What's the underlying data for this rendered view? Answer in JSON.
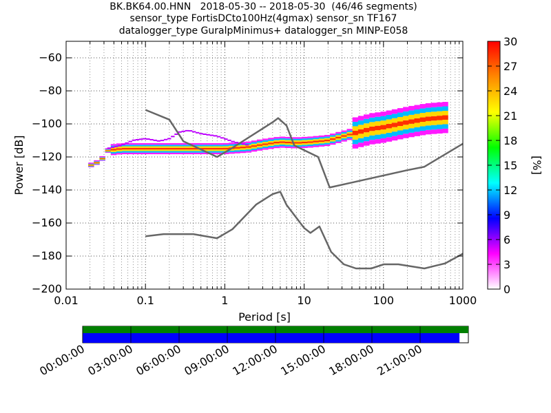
{
  "titles": [
    "BK.BK64.00.HNN   2018-05-30 -- 2018-05-30  (46/46 segments)",
    "sensor_type FortisDCto100Hz(4gmax) sensor_sn TF167",
    "datalogger_type GuralpMinimus+ datalogger_sn MINP-E058"
  ],
  "chart_data": {
    "type": "heatmap",
    "xlabel": "Period [s]",
    "ylabel": "Power [dB]",
    "xscale": "log",
    "xlim": [
      0.01,
      1000
    ],
    "ylim": [
      -200,
      -50
    ],
    "xticks": [
      0.01,
      0.1,
      1,
      10,
      100,
      1000
    ],
    "xtick_labels": [
      "0.01",
      "0.1",
      "1",
      "10",
      "100",
      "1000"
    ],
    "yticks": [
      -60,
      -80,
      -100,
      -120,
      -140,
      -160,
      -180,
      -200
    ],
    "ytick_labels": [
      "−60",
      "−80",
      "−100",
      "−120",
      "−140",
      "−160",
      "−180",
      "−200"
    ],
    "grid": true,
    "colorbar": {
      "label": "[%]",
      "range": [
        0,
        30
      ],
      "ticks": [
        0,
        3,
        6,
        9,
        12,
        15,
        18,
        21,
        24,
        27,
        30
      ],
      "colors": [
        "#ffffff",
        "#ff00ff",
        "#0000ff",
        "#00ffff",
        "#00ff00",
        "#ffff00",
        "#ff8800",
        "#ff0000"
      ]
    },
    "noise_models": [
      {
        "points": [
          [
            0.1,
            -91.5
          ],
          [
            0.2,
            -97.4
          ],
          [
            0.3,
            -110.5
          ],
          [
            0.8,
            -120
          ],
          [
            1.2,
            -115
          ],
          [
            4,
            -99
          ],
          [
            4.7,
            -96.5
          ],
          [
            6,
            -101
          ],
          [
            7.5,
            -113
          ],
          [
            15,
            -120
          ],
          [
            21,
            -138.5
          ],
          [
            200,
            -128
          ],
          [
            325,
            -126
          ],
          [
            1000,
            -112
          ]
        ]
      },
      {
        "points": [
          [
            0.1,
            -168
          ],
          [
            0.17,
            -166.7
          ],
          [
            0.4,
            -166.7
          ],
          [
            0.8,
            -169.2
          ],
          [
            1.25,
            -163.7
          ],
          [
            2.5,
            -148.7
          ],
          [
            4,
            -142.5
          ],
          [
            5,
            -141.1
          ],
          [
            6,
            -149
          ],
          [
            10,
            -163
          ],
          [
            12,
            -166
          ],
          [
            15.6,
            -162.1
          ],
          [
            21.9,
            -177.5
          ],
          [
            31.6,
            -185
          ],
          [
            45,
            -187.5
          ],
          [
            70,
            -187.5
          ],
          [
            101,
            -185
          ],
          [
            154,
            -185
          ],
          [
            328,
            -187.5
          ],
          [
            600,
            -184.4
          ],
          [
            1000,
            -178.6
          ]
        ]
      }
    ],
    "psd_ridge": {
      "points": [
        [
          0.019,
          -127
        ],
        [
          0.02,
          -125
        ],
        [
          0.025,
          -123
        ],
        [
          0.03,
          -120
        ],
        [
          0.033,
          -116
        ],
        [
          0.05,
          -115
        ],
        [
          0.1,
          -115
        ],
        [
          0.2,
          -115
        ],
        [
          0.5,
          -115
        ],
        [
          1,
          -115
        ],
        [
          2,
          -114
        ],
        [
          3,
          -112.5
        ],
        [
          5,
          -111
        ],
        [
          8,
          -111.5
        ],
        [
          12,
          -111
        ],
        [
          20,
          -110
        ],
        [
          40,
          -106
        ],
        [
          70,
          -103
        ],
        [
          100,
          -102
        ],
        [
          200,
          -99
        ],
        [
          350,
          -97
        ],
        [
          650,
          -96
        ]
      ]
    },
    "psd_upper_band": {
      "points": [
        [
          0.033,
          -115
        ],
        [
          0.05,
          -113
        ],
        [
          0.07,
          -110
        ],
        [
          0.1,
          -109
        ],
        [
          0.15,
          -110.5
        ],
        [
          0.2,
          -109
        ],
        [
          0.27,
          -105
        ],
        [
          0.35,
          -104
        ],
        [
          0.5,
          -106
        ],
        [
          0.8,
          -107.5
        ],
        [
          1.3,
          -111
        ],
        [
          2,
          -113
        ]
      ]
    },
    "availability": {
      "time_ticks": [
        "00:00:00",
        "03:00:00",
        "06:00:00",
        "09:00:00",
        "12:00:00",
        "15:00:00",
        "18:00:00",
        "21:00:00"
      ],
      "data_fraction": 0.977,
      "top_color": "#008000",
      "data_color": "#0000ff"
    },
    "colors": {
      "noise_model": "#666666",
      "grid": "#000000",
      "frame": "#000000"
    }
  }
}
